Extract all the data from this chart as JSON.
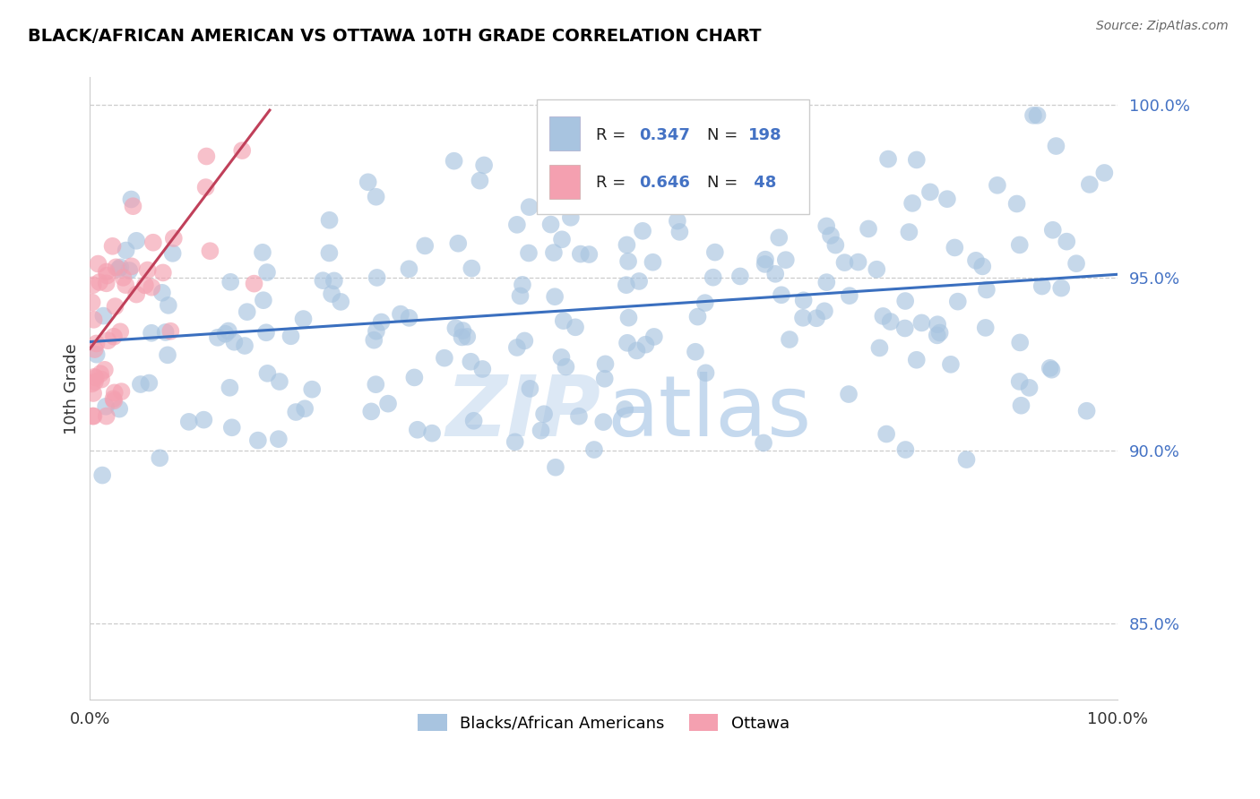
{
  "title": "BLACK/AFRICAN AMERICAN VS OTTAWA 10TH GRADE CORRELATION CHART",
  "source": "Source: ZipAtlas.com",
  "ylabel": "10th Grade",
  "y_axis_labels": [
    "100.0%",
    "95.0%",
    "90.0%",
    "85.0%"
  ],
  "y_axis_values": [
    1.0,
    0.95,
    0.9,
    0.85
  ],
  "xlim": [
    0.0,
    1.0
  ],
  "ylim": [
    0.828,
    1.008
  ],
  "blue_R": 0.347,
  "blue_N": 198,
  "pink_R": 0.646,
  "pink_N": 48,
  "blue_color": "#a8c4e0",
  "blue_line_color": "#3a6fbf",
  "pink_color": "#f4a0b0",
  "pink_line_color": "#c0405a",
  "blue_trendline_x": [
    0.0,
    1.0
  ],
  "blue_trendline_y": [
    0.9315,
    0.951
  ],
  "pink_trendline_x": [
    0.0,
    0.175
  ],
  "pink_trendline_y": [
    0.9295,
    0.9985
  ],
  "background_color": "#ffffff",
  "grid_color": "#cccccc",
  "title_color": "#000000",
  "legend_text_color": "#333333",
  "legend_value_color": "#4472c4",
  "legend_N_color": "#4472c4"
}
